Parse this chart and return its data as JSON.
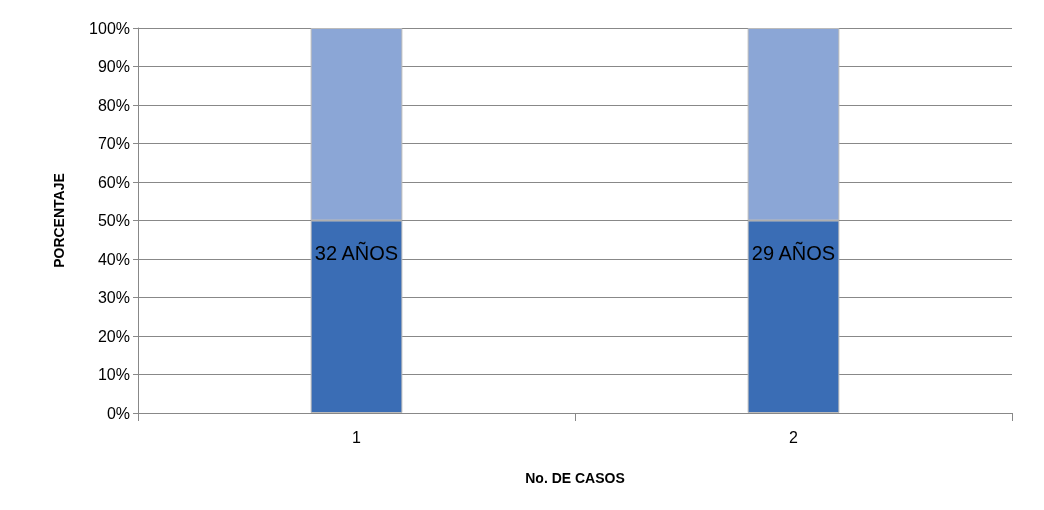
{
  "chart_data": {
    "type": "bar",
    "stacked": true,
    "xlabel": "No. DE CASOS",
    "ylabel": "PORCENTAJE",
    "categories": [
      "1",
      "2"
    ],
    "series": [
      {
        "color": "#3a6db5",
        "values": [
          50,
          50
        ]
      },
      {
        "color": "#8ba6d6",
        "values": [
          50,
          50
        ]
      }
    ],
    "ylim": [
      0,
      100
    ],
    "yticks": [
      {
        "value": 0,
        "label": "0%"
      },
      {
        "value": 10,
        "label": "10%"
      },
      {
        "value": 20,
        "label": "20%"
      },
      {
        "value": 30,
        "label": "30%"
      },
      {
        "value": 40,
        "label": "40%"
      },
      {
        "value": 50,
        "label": "50%"
      },
      {
        "value": 60,
        "label": "60%"
      },
      {
        "value": 70,
        "label": "70%"
      },
      {
        "value": 80,
        "label": "80%"
      },
      {
        "value": 90,
        "label": "90%"
      },
      {
        "value": 100,
        "label": "100%"
      }
    ],
    "grid": "y",
    "annotations": [
      "32 AÑOS",
      "29 AÑOS"
    ]
  }
}
